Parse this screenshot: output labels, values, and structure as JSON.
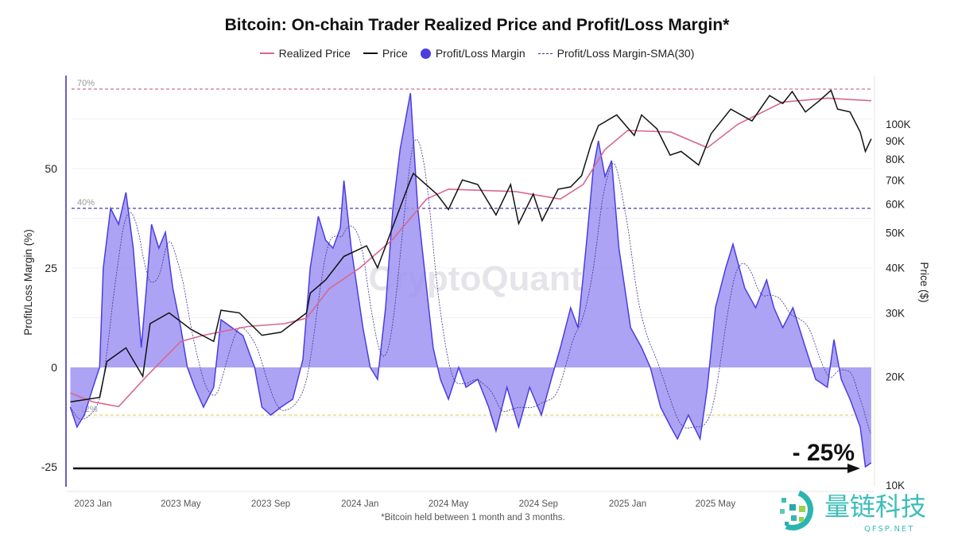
{
  "chart_data": {
    "type": "area",
    "title": "Bitcoin: On-chain Trader Realized Price and Profit/Loss Margin*",
    "footnote": "*Bitcoin held between 1 month and 3 months.",
    "ylabel": "Profit/Loss Margin (%)",
    "ylabel_right": "Price ($)",
    "ylim": [
      -30,
      72
    ],
    "yticks": [
      -25,
      0,
      25,
      50
    ],
    "yticks_right": [
      "10K",
      "20K",
      "30K",
      "40K",
      "50K",
      "60K",
      "70K",
      "80K",
      "90K",
      "100K"
    ],
    "y_right_scale": "log",
    "xticks": [
      "2023 Jan",
      "2023 May",
      "2023 Sep",
      "2024 Jan",
      "2024 May",
      "2024 Sep",
      "2025 Jan",
      "2025 May"
    ],
    "grid": true,
    "legend_placement": "top-center",
    "legend": [
      "Realized Price",
      "Price",
      "Profit/Loss Margin",
      "Profit/Loss Margin-SMA(30)"
    ],
    "colors": {
      "realized": "#d9678f",
      "price": "#111111",
      "margin_fill": "#9d93f2",
      "margin_line": "#4b3de0",
      "sma": "#3d3590",
      "line70": "#d88aa6",
      "line40": "#6a5fb0",
      "lineneg12": "#e8dc8a"
    },
    "reference_lines": [
      {
        "label": "70%",
        "value": 70
      },
      {
        "label": "40%",
        "value": 40
      },
      {
        "label": "-12%",
        "value": -12
      }
    ],
    "annotation": {
      "text": "- 25%",
      "value": -25
    },
    "watermark": "CryptoQuant",
    "margin_series": [
      [
        "2022-12-01",
        -10
      ],
      [
        "2022-12-10",
        -15
      ],
      [
        "2022-12-20",
        -12
      ],
      [
        "2023-01-01",
        -5
      ],
      [
        "2023-01-10",
        0
      ],
      [
        "2023-01-15",
        25
      ],
      [
        "2023-01-25",
        40
      ],
      [
        "2023-02-05",
        36
      ],
      [
        "2023-02-15",
        44
      ],
      [
        "2023-02-25",
        30
      ],
      [
        "2023-03-08",
        5
      ],
      [
        "2023-03-15",
        20
      ],
      [
        "2023-03-22",
        36
      ],
      [
        "2023-04-01",
        30
      ],
      [
        "2023-04-10",
        34
      ],
      [
        "2023-04-20",
        20
      ],
      [
        "2023-05-01",
        10
      ],
      [
        "2023-05-10",
        0
      ],
      [
        "2023-05-20",
        -5
      ],
      [
        "2023-06-01",
        -10
      ],
      [
        "2023-06-15",
        -5
      ],
      [
        "2023-06-25",
        12
      ],
      [
        "2023-07-10",
        10
      ],
      [
        "2023-07-25",
        8
      ],
      [
        "2023-08-10",
        0
      ],
      [
        "2023-08-20",
        -10
      ],
      [
        "2023-09-01",
        -12
      ],
      [
        "2023-09-15",
        -10
      ],
      [
        "2023-10-01",
        -8
      ],
      [
        "2023-10-15",
        2
      ],
      [
        "2023-10-25",
        25
      ],
      [
        "2023-11-05",
        38
      ],
      [
        "2023-11-15",
        32
      ],
      [
        "2023-11-25",
        30
      ],
      [
        "2023-12-05",
        35
      ],
      [
        "2023-12-10",
        47
      ],
      [
        "2023-12-20",
        30
      ],
      [
        "2024-01-05",
        10
      ],
      [
        "2024-01-15",
        0
      ],
      [
        "2024-01-25",
        -3
      ],
      [
        "2024-02-05",
        15
      ],
      [
        "2024-02-15",
        40
      ],
      [
        "2024-02-25",
        55
      ],
      [
        "2024-03-10",
        69
      ],
      [
        "2024-03-20",
        40
      ],
      [
        "2024-04-01",
        20
      ],
      [
        "2024-04-10",
        5
      ],
      [
        "2024-04-20",
        -3
      ],
      [
        "2024-05-01",
        -8
      ],
      [
        "2024-05-15",
        0
      ],
      [
        "2024-05-25",
        -5
      ],
      [
        "2024-06-10",
        -3
      ],
      [
        "2024-06-25",
        -10
      ],
      [
        "2024-07-05",
        -16
      ],
      [
        "2024-07-20",
        -5
      ],
      [
        "2024-08-05",
        -15
      ],
      [
        "2024-08-20",
        -5
      ],
      [
        "2024-09-05",
        -12
      ],
      [
        "2024-09-20",
        -2
      ],
      [
        "2024-10-01",
        5
      ],
      [
        "2024-10-15",
        15
      ],
      [
        "2024-10-25",
        10
      ],
      [
        "2024-11-05",
        30
      ],
      [
        "2024-11-15",
        50
      ],
      [
        "2024-11-22",
        57
      ],
      [
        "2024-12-01",
        48
      ],
      [
        "2024-12-10",
        52
      ],
      [
        "2024-12-20",
        30
      ],
      [
        "2025-01-05",
        10
      ],
      [
        "2025-01-20",
        5
      ],
      [
        "2025-02-01",
        0
      ],
      [
        "2025-02-15",
        -10
      ],
      [
        "2025-03-01",
        -15
      ],
      [
        "2025-03-10",
        -18
      ],
      [
        "2025-03-25",
        -12
      ],
      [
        "2025-04-10",
        -18
      ],
      [
        "2025-04-20",
        -5
      ],
      [
        "2025-05-01",
        15
      ],
      [
        "2025-05-15",
        25
      ],
      [
        "2025-05-25",
        31
      ],
      [
        "2025-06-10",
        20
      ],
      [
        "2025-06-25",
        15
      ],
      [
        "2025-07-10",
        22
      ],
      [
        "2025-07-20",
        15
      ],
      [
        "2025-08-01",
        10
      ],
      [
        "2025-08-15",
        15
      ],
      [
        "2025-09-01",
        5
      ],
      [
        "2025-09-15",
        -3
      ],
      [
        "2025-10-01",
        -5
      ],
      [
        "2025-10-10",
        7
      ],
      [
        "2025-10-20",
        -3
      ],
      [
        "2025-11-01",
        -8
      ],
      [
        "2025-11-15",
        -15
      ],
      [
        "2025-11-22",
        -25
      ],
      [
        "2025-11-30",
        -24
      ]
    ],
    "price_series": [
      [
        "2022-12-01",
        17000
      ],
      [
        "2023-01-10",
        17500
      ],
      [
        "2023-01-20",
        22000
      ],
      [
        "2023-02-15",
        24000
      ],
      [
        "2023-03-10",
        20000
      ],
      [
        "2023-03-20",
        28000
      ],
      [
        "2023-04-15",
        30000
      ],
      [
        "2023-05-15",
        27000
      ],
      [
        "2023-06-15",
        25000
      ],
      [
        "2023-06-25",
        30500
      ],
      [
        "2023-07-20",
        30000
      ],
      [
        "2023-08-20",
        26000
      ],
      [
        "2023-09-15",
        26500
      ],
      [
        "2023-10-20",
        30000
      ],
      [
        "2023-10-25",
        34000
      ],
      [
        "2023-11-15",
        37000
      ],
      [
        "2023-12-10",
        43000
      ],
      [
        "2024-01-10",
        46000
      ],
      [
        "2024-01-25",
        40000
      ],
      [
        "2024-02-15",
        52000
      ],
      [
        "2024-03-10",
        70000
      ],
      [
        "2024-03-14",
        73000
      ],
      [
        "2024-04-15",
        64000
      ],
      [
        "2024-05-01",
        58000
      ],
      [
        "2024-05-20",
        70000
      ],
      [
        "2024-06-10",
        68000
      ],
      [
        "2024-07-05",
        56000
      ],
      [
        "2024-07-25",
        68000
      ],
      [
        "2024-08-05",
        53000
      ],
      [
        "2024-08-25",
        64000
      ],
      [
        "2024-09-06",
        54000
      ],
      [
        "2024-09-28",
        66000
      ],
      [
        "2024-10-15",
        67000
      ],
      [
        "2024-10-30",
        72000
      ],
      [
        "2024-11-12",
        88000
      ],
      [
        "2024-11-22",
        99000
      ],
      [
        "2024-12-17",
        106000
      ],
      [
        "2025-01-10",
        93000
      ],
      [
        "2025-01-20",
        106000
      ],
      [
        "2025-02-10",
        97000
      ],
      [
        "2025-02-28",
        82000
      ],
      [
        "2025-03-15",
        84000
      ],
      [
        "2025-04-08",
        77000
      ],
      [
        "2025-04-25",
        94000
      ],
      [
        "2025-05-22",
        110000
      ],
      [
        "2025-06-20",
        102000
      ],
      [
        "2025-07-14",
        120000
      ],
      [
        "2025-08-01",
        114000
      ],
      [
        "2025-08-14",
        123000
      ],
      [
        "2025-09-01",
        108000
      ],
      [
        "2025-09-20",
        116000
      ],
      [
        "2025-10-06",
        124000
      ],
      [
        "2025-10-15",
        110000
      ],
      [
        "2025-11-01",
        108000
      ],
      [
        "2025-11-15",
        95000
      ],
      [
        "2025-11-22",
        84000
      ],
      [
        "2025-11-30",
        91000
      ]
    ],
    "realized_price_series": [
      [
        "2022-12-01",
        18000
      ],
      [
        "2023-01-01",
        17000
      ],
      [
        "2023-02-05",
        16500
      ],
      [
        "2023-03-15",
        20000
      ],
      [
        "2023-05-01",
        25000
      ],
      [
        "2023-06-01",
        26000
      ],
      [
        "2023-08-01",
        27500
      ],
      [
        "2023-09-20",
        28000
      ],
      [
        "2023-10-20",
        29000
      ],
      [
        "2023-11-20",
        35000
      ],
      [
        "2024-01-01",
        40000
      ],
      [
        "2024-02-15",
        48000
      ],
      [
        "2024-04-01",
        62000
      ],
      [
        "2024-05-01",
        66000
      ],
      [
        "2024-08-01",
        65000
      ],
      [
        "2024-10-01",
        62000
      ],
      [
        "2024-11-01",
        68000
      ],
      [
        "2024-12-01",
        85000
      ],
      [
        "2025-01-01",
        96000
      ],
      [
        "2025-03-01",
        95000
      ],
      [
        "2025-04-20",
        86000
      ],
      [
        "2025-06-01",
        100000
      ],
      [
        "2025-08-01",
        115000
      ],
      [
        "2025-10-01",
        118000
      ],
      [
        "2025-11-30",
        116000
      ]
    ]
  },
  "logo": {
    "text": "量链科技",
    "subtext": "QFSP.NET"
  }
}
